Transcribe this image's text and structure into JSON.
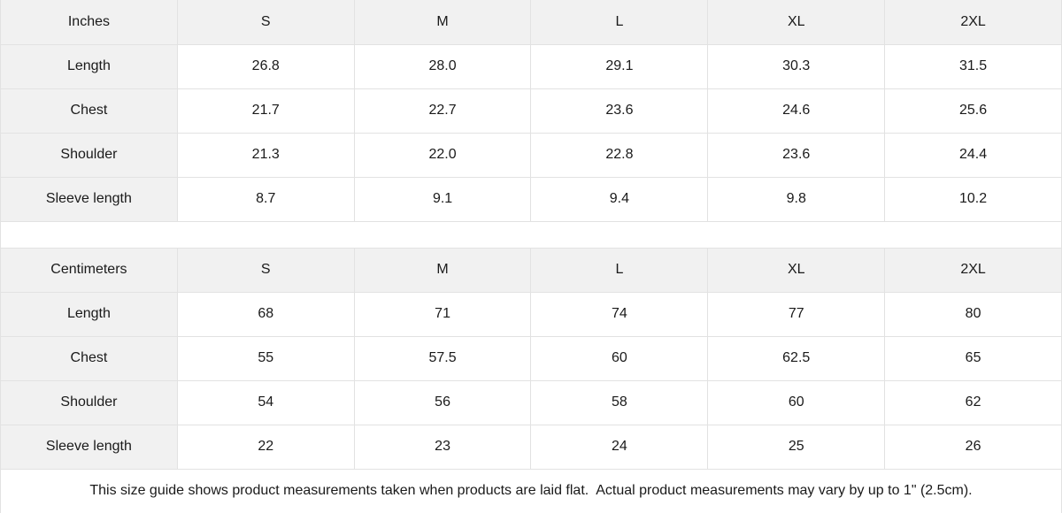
{
  "colors": {
    "header_bg": "#f1f1f1",
    "border": "#e2e2e2",
    "text": "#1a1a1a",
    "cell_bg": "#ffffff"
  },
  "chart_data": [
    {
      "type": "table",
      "unit": "Inches",
      "columns": [
        "S",
        "M",
        "L",
        "XL",
        "2XL"
      ],
      "rows": [
        {
          "label": "Length",
          "values": [
            "26.8",
            "28.0",
            "29.1",
            "30.3",
            "31.5"
          ]
        },
        {
          "label": "Chest",
          "values": [
            "21.7",
            "22.7",
            "23.6",
            "24.6",
            "25.6"
          ]
        },
        {
          "label": "Shoulder",
          "values": [
            "21.3",
            "22.0",
            "22.8",
            "23.6",
            "24.4"
          ]
        },
        {
          "label": "Sleeve length",
          "values": [
            "8.7",
            "9.1",
            "9.4",
            "9.8",
            "10.2"
          ]
        }
      ]
    },
    {
      "type": "table",
      "unit": "Centimeters",
      "columns": [
        "S",
        "M",
        "L",
        "XL",
        "2XL"
      ],
      "rows": [
        {
          "label": "Length",
          "values": [
            "68",
            "71",
            "74",
            "77",
            "80"
          ]
        },
        {
          "label": "Chest",
          "values": [
            "55",
            "57.5",
            "60",
            "62.5",
            "65"
          ]
        },
        {
          "label": "Shoulder",
          "values": [
            "54",
            "56",
            "58",
            "60",
            "62"
          ]
        },
        {
          "label": "Sleeve length",
          "values": [
            "22",
            "23",
            "24",
            "25",
            "26"
          ]
        }
      ]
    }
  ],
  "footer": {
    "note": "This size guide shows product measurements taken when products are laid flat.  Actual product measurements may vary by up to 1\" (2.5cm)."
  }
}
